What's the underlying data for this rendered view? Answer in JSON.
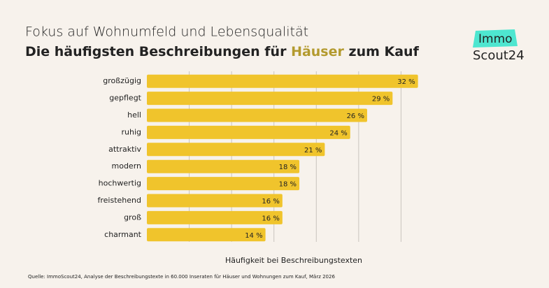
{
  "chart_data": {
    "type": "hbar",
    "subtitle": "Fokus auf Wohnumfeld und Lebensqualität",
    "title": [
      "Die häufigsten Beschreibungen für ",
      "Häuser",
      " zum Kauf"
    ],
    "categories": [
      "großzügig",
      "gepflegt",
      "hell",
      "ruhig",
      "attraktiv",
      "modern",
      "hochwertig",
      "freistehend",
      "groß",
      "charmant"
    ],
    "values": [
      32,
      29,
      26,
      24,
      21,
      18,
      18,
      16,
      16,
      14
    ],
    "value_labels": [
      "32 %",
      "29 %",
      "26 %",
      "24 %",
      "21 %",
      "18 %",
      "18 %",
      "16 %",
      "16 %",
      "14 %"
    ],
    "color": "#f0c42c",
    "xlim": [
      0,
      35
    ],
    "xticks": [
      5,
      10,
      15,
      20,
      25,
      30
    ],
    "show_tick_labels": false,
    "grid": true,
    "xlabel": "Häufigkeit bei Beschreibungstexten",
    "source": "Quelle: ImmoScout24, Analyse der Beschreibungstexte in 60.000 Inseraten für Häuser und Wohnungen zum Kauf, März 2026"
  },
  "logo": {
    "top": "Immo",
    "bottom": "Scout24"
  }
}
